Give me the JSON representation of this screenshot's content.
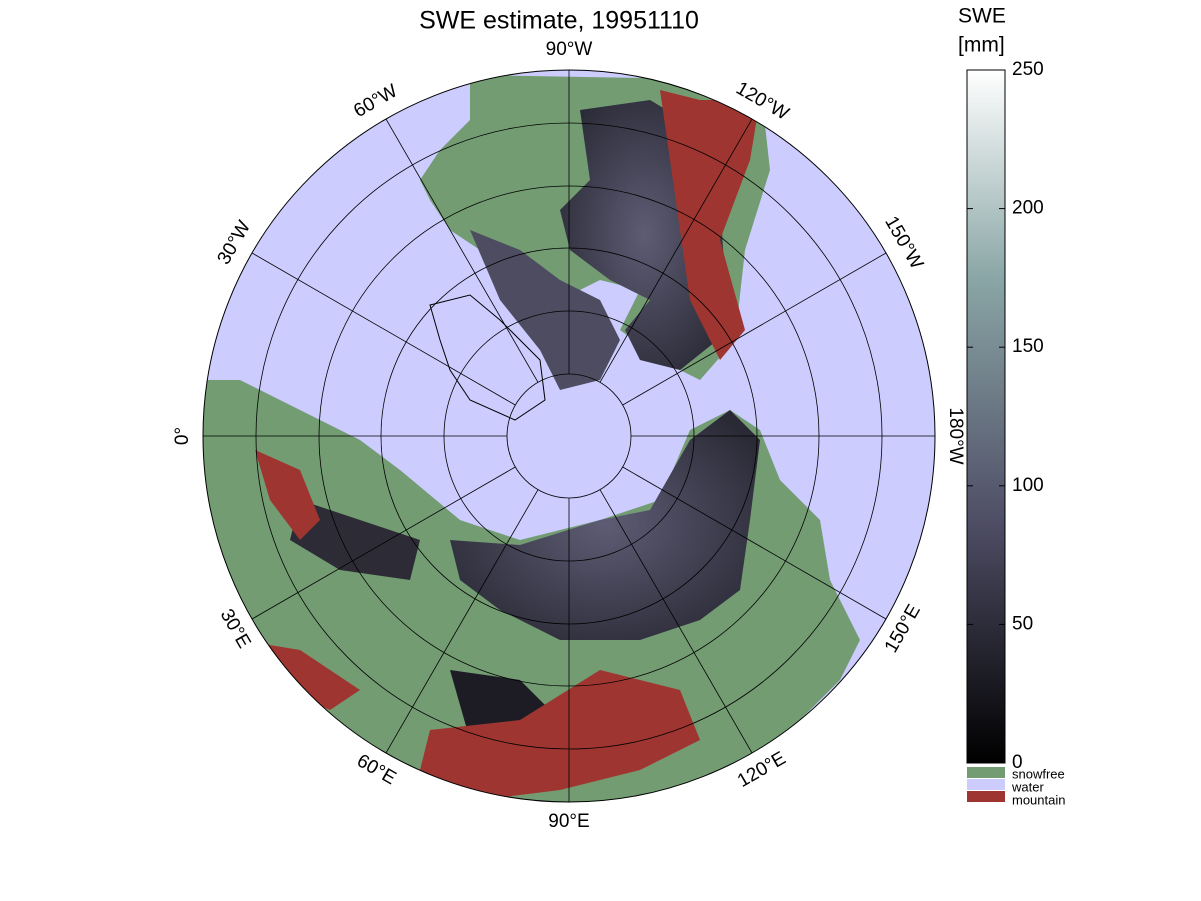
{
  "title": "SWE estimate, 19951110",
  "longitude_labels": [
    "90°W",
    "120°W",
    "150°W",
    "180°W",
    "150°E",
    "120°E",
    "90°E",
    "60°E",
    "30°E",
    "0°",
    "30°W",
    "60°W"
  ],
  "colorbar": {
    "label_lines": [
      "SWE",
      "[mm]"
    ],
    "lim": [
      0,
      250
    ],
    "ticks": [
      0,
      50,
      100,
      150,
      200,
      250
    ]
  },
  "legend": [
    "snowfree",
    "water",
    "mountain"
  ]
}
